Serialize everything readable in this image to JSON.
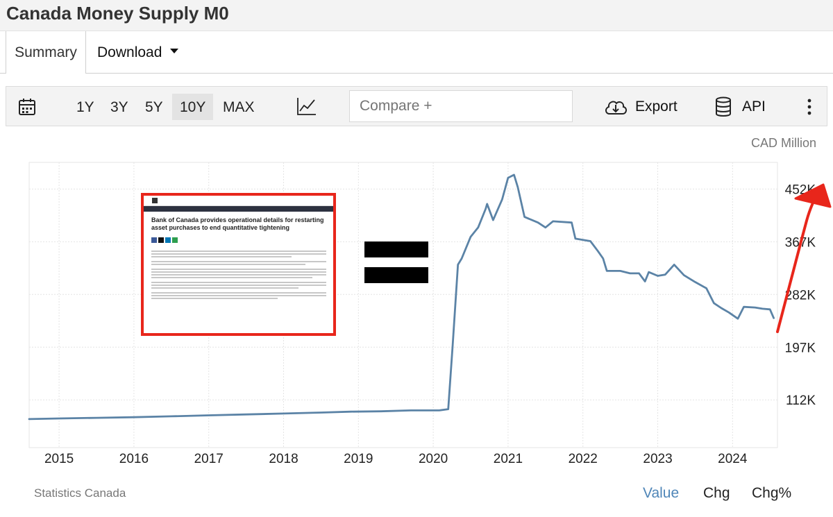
{
  "header": {
    "title": "Canada Money Supply M0"
  },
  "tabs": [
    {
      "label": "Summary"
    },
    {
      "label": "Download"
    }
  ],
  "toolbar": {
    "ranges": [
      "1Y",
      "3Y",
      "5Y",
      "10Y",
      "MAX"
    ],
    "active_range": "10Y",
    "compare_placeholder": "Compare +",
    "export_label": "Export",
    "api_label": "API"
  },
  "chart": {
    "unit": "CAD Million",
    "source": "Statistics Canada",
    "line_color": "#5b83a6"
  },
  "modes": [
    "Value",
    "Chg",
    "Chg%"
  ],
  "active_mode": "Value",
  "annotation": {
    "headline": "Bank of Canada provides operational details for restarting asset purchases to end quantitative tightening",
    "arrow_color": "#e8261b"
  },
  "chart_data": {
    "type": "line",
    "ylim": [
      35,
      495
    ],
    "yticks": [
      112,
      197,
      282,
      367,
      452
    ],
    "ytick_labels": [
      "112K",
      "197K",
      "282K",
      "367K",
      "452K"
    ],
    "xlim": [
      2014.6,
      2024.6
    ],
    "xticks": [
      2015,
      2016,
      2017,
      2018,
      2019,
      2020,
      2021,
      2022,
      2023,
      2024
    ],
    "xtick_labels": [
      "2015",
      "2016",
      "2017",
      "2018",
      "2019",
      "2020",
      "2021",
      "2022",
      "2023",
      "2024"
    ],
    "series": [
      {
        "values": [
          [
            2014.6,
            81
          ],
          [
            2015.0,
            82
          ],
          [
            2015.5,
            83
          ],
          [
            2016.0,
            84
          ],
          [
            2016.5,
            85.5
          ],
          [
            2017.0,
            87
          ],
          [
            2017.5,
            88.5
          ],
          [
            2018.0,
            90
          ],
          [
            2018.5,
            91.5
          ],
          [
            2018.9,
            93
          ],
          [
            2019.3,
            93.5
          ],
          [
            2019.7,
            95
          ],
          [
            2020.08,
            95
          ],
          [
            2020.2,
            97
          ],
          [
            2020.26,
            200
          ],
          [
            2020.33,
            330
          ],
          [
            2020.38,
            340
          ],
          [
            2020.5,
            375
          ],
          [
            2020.6,
            390
          ],
          [
            2020.7,
            420
          ],
          [
            2020.72,
            428
          ],
          [
            2020.8,
            402
          ],
          [
            2020.92,
            435
          ],
          [
            2021.0,
            470
          ],
          [
            2021.08,
            475
          ],
          [
            2021.13,
            455
          ],
          [
            2021.22,
            407
          ],
          [
            2021.4,
            398
          ],
          [
            2021.5,
            390
          ],
          [
            2021.6,
            400
          ],
          [
            2021.85,
            398
          ],
          [
            2021.9,
            372
          ],
          [
            2022.1,
            368
          ],
          [
            2022.2,
            352
          ],
          [
            2022.27,
            340
          ],
          [
            2022.32,
            320
          ],
          [
            2022.5,
            320
          ],
          [
            2022.63,
            316
          ],
          [
            2022.75,
            316
          ],
          [
            2022.83,
            303
          ],
          [
            2022.88,
            318
          ],
          [
            2023.0,
            312
          ],
          [
            2023.1,
            314
          ],
          [
            2023.22,
            330
          ],
          [
            2023.35,
            313
          ],
          [
            2023.5,
            302
          ],
          [
            2023.65,
            292
          ],
          [
            2023.75,
            268
          ],
          [
            2023.85,
            260
          ],
          [
            2023.95,
            253
          ],
          [
            2024.07,
            243
          ],
          [
            2024.15,
            262
          ],
          [
            2024.3,
            261
          ],
          [
            2024.4,
            259
          ],
          [
            2024.5,
            258
          ],
          [
            2024.55,
            244
          ]
        ]
      }
    ]
  }
}
